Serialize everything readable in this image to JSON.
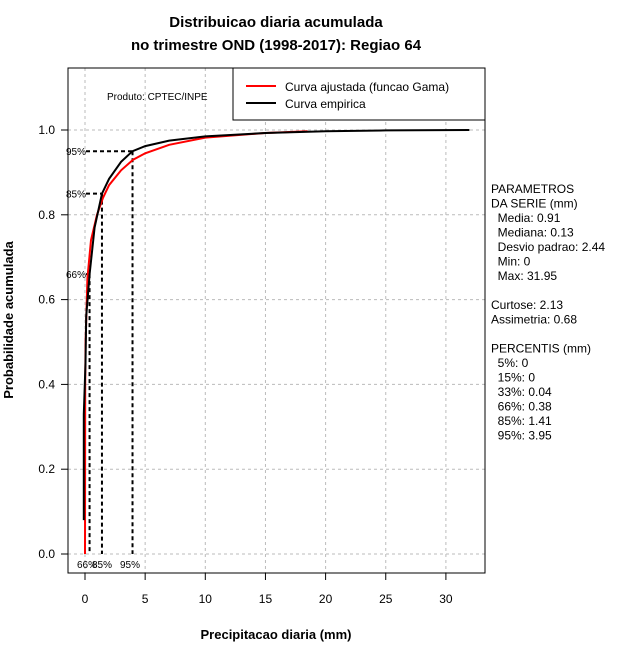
{
  "chart_data": {
    "type": "line",
    "title": [
      "Distribuicao diaria acumulada",
      "no trimestre OND (1998-2017): Regiao 64"
    ],
    "xlabel": "Precipitacao diaria (mm)",
    "ylabel": "Probabilidade acumulada",
    "xlim": [
      -1.5,
      33
    ],
    "ylim": [
      -0.045,
      1.14
    ],
    "xticks": [
      0,
      5,
      10,
      15,
      20,
      25,
      30
    ],
    "yticks": [
      "0.0",
      "0.2",
      "0.4",
      "0.6",
      "0.8",
      "1.0"
    ],
    "grid": true,
    "source_note": "Produto: CPTEC/INPE",
    "legend": {
      "placement": "top-right",
      "entries": [
        "Curva ajustada (funcao Gama)",
        "Curva empirica"
      ]
    },
    "series": [
      {
        "name": "Curva ajustada (funcao Gama)",
        "color": "#ff0000",
        "points": [
          [
            0,
            0
          ],
          [
            0.02,
            0.4
          ],
          [
            0.05,
            0.5
          ],
          [
            0.2,
            0.65
          ],
          [
            0.5,
            0.74
          ],
          [
            1,
            0.8
          ],
          [
            1.5,
            0.84
          ],
          [
            2,
            0.87
          ],
          [
            3,
            0.905
          ],
          [
            4,
            0.93
          ],
          [
            5,
            0.945
          ],
          [
            7,
            0.965
          ],
          [
            10,
            0.982
          ],
          [
            15,
            0.993
          ],
          [
            18.5,
            0.997
          ]
        ]
      },
      {
        "name": "Curva empirica",
        "color": "#000000",
        "points": [
          [
            -0.1,
            0.08
          ],
          [
            -0.1,
            0.33
          ],
          [
            0.04,
            0.45
          ],
          [
            0.1,
            0.56
          ],
          [
            0.38,
            0.66
          ],
          [
            0.8,
            0.77
          ],
          [
            1.41,
            0.85
          ],
          [
            2,
            0.885
          ],
          [
            3,
            0.925
          ],
          [
            3.95,
            0.95
          ],
          [
            5,
            0.962
          ],
          [
            7,
            0.975
          ],
          [
            10,
            0.985
          ],
          [
            15,
            0.993
          ],
          [
            20,
            0.997
          ],
          [
            25,
            0.999
          ],
          [
            31.95,
            1
          ]
        ]
      }
    ],
    "percentile_markers": [
      {
        "label": "66%",
        "p": 0.66,
        "x": 0.38
      },
      {
        "label": "85%",
        "p": 0.85,
        "x": 1.41
      },
      {
        "label": "95%",
        "p": 0.95,
        "x": 3.95
      }
    ]
  },
  "stats_panel": [
    "PARAMETROS",
    "DA SERIE (mm)",
    "  Media: 0.91",
    "  Mediana: 0.13",
    "  Desvio padrao: 2.44",
    "  Min: 0",
    "  Max: 31.95",
    "",
    "Curtose: 2.13",
    "Assimetria: 0.68",
    "",
    "PERCENTIS (mm)",
    "  5%: 0",
    "  15%: 0",
    "  33%: 0.04",
    "  66%: 0.38",
    "  85%: 1.41",
    "  95%: 3.95"
  ]
}
